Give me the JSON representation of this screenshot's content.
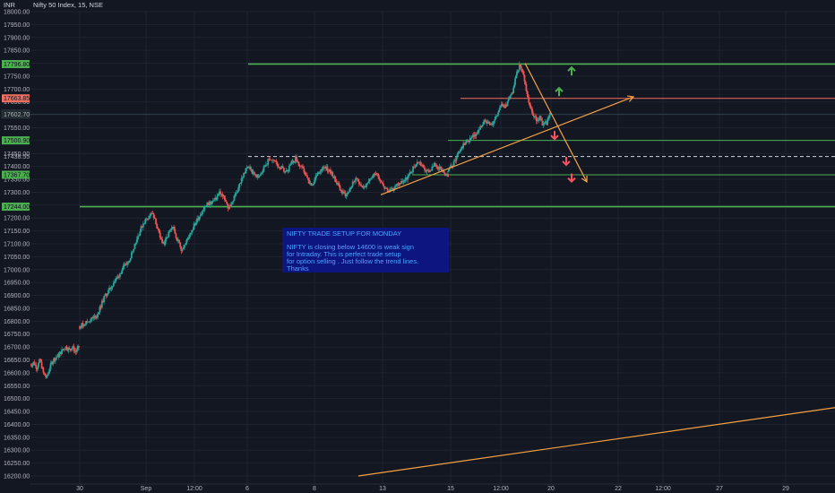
{
  "header": {
    "currency": "INR",
    "symbol_title": "Nifty 50 Index, 15, NSE"
  },
  "chart_data": {
    "type": "candlestick",
    "currency": "INR",
    "ylim": [
      16200,
      18000
    ],
    "y_ticks": [
      16200,
      16250,
      16300,
      16350,
      16400,
      16450,
      16500,
      16550,
      16600,
      16650,
      16700,
      16750,
      16800,
      16850,
      16900,
      16950,
      17000,
      17050,
      17100,
      17150,
      17200,
      17250,
      17300,
      17350,
      17400,
      17450,
      17500,
      17550,
      17600,
      17650,
      17700,
      17750,
      17800,
      17850,
      17900,
      17950,
      18000
    ],
    "y_tick_labels": [
      "16200.00",
      "16250.00",
      "16300.00",
      "16350.00",
      "16400.00",
      "16450.00",
      "16500.00",
      "16550.00",
      "16600.00",
      "16650.00",
      "16700.00",
      "16750.00",
      "16800.00",
      "16850.00",
      "16900.00",
      "16950.00",
      "17000.00",
      "17050.00",
      "17100.00",
      "17150.00",
      "17200.00",
      "17250.00",
      "17300.00",
      "17350.00",
      "17400.00",
      "17450.00",
      "17500.00",
      "17550.00",
      "17600.00",
      "17650.00",
      "17700.00",
      "17750.00",
      "17800.00",
      "17850.00",
      "17900.00",
      "17950.00",
      "18000.00"
    ],
    "x_ticks": [
      "30",
      "Sep",
      "12:00",
      "6",
      "8",
      "13",
      "15",
      "12:00",
      "20",
      "22",
      "12:00",
      "27",
      "29"
    ],
    "price_levels": [
      {
        "value": 17796.8,
        "label": "17796.80",
        "color": "#4caf50",
        "style": "solid"
      },
      {
        "value": 17663.85,
        "label": "17663.85",
        "color": "#ef6f61",
        "style": "solid"
      },
      {
        "value": 17500.9,
        "label": "17500.90",
        "color": "#4caf50",
        "style": "solid"
      },
      {
        "value": 17438.55,
        "label": "17438.55",
        "color": "#d1d4dc",
        "style": "dashed"
      },
      {
        "value": 17367.7,
        "label": "17367.70",
        "color": "#4caf50",
        "style": "solid"
      },
      {
        "value": 17244.0,
        "label": "17244.00",
        "color": "#4caf50",
        "style": "solid"
      }
    ],
    "last_price": {
      "value": 17602.7,
      "label": "17602.70"
    },
    "path_points": [
      [
        16630,
        16640,
        16620,
        16650,
        16600,
        16580,
        16620,
        16650,
        16660,
        16670,
        16690,
        16700,
        16690,
        16700,
        16680,
        16700
      ],
      [
        16780,
        16790,
        16800,
        16810,
        16820,
        16860,
        16900,
        16920,
        16950,
        16970,
        17000,
        17020,
        17050,
        17100,
        17140,
        17180,
        17200,
        17220,
        17180,
        17120,
        17100,
        17140,
        17160,
        17120,
        17080,
        17100,
        17140,
        17170,
        17200,
        17230,
        17250,
        17260,
        17270,
        17300,
        17280,
        17240,
        17260,
        17300,
        17340,
        17380,
        17400,
        17370,
        17360,
        17380,
        17410,
        17430,
        17420,
        17400,
        17390,
        17380,
        17410,
        17430,
        17400,
        17380,
        17340,
        17320,
        17370,
        17390,
        17400,
        17380,
        17360,
        17330,
        17300,
        17290,
        17320,
        17350,
        17340,
        17320,
        17330,
        17360,
        17380,
        17350,
        17320,
        17300,
        17310,
        17330,
        17340,
        17350,
        17370,
        17400,
        17420,
        17400,
        17380,
        17390,
        17410,
        17390,
        17370,
        17360
      ],
      [
        17380,
        17400,
        17420,
        17450,
        17470,
        17490,
        17500,
        17510,
        17520,
        17540,
        17560,
        17580,
        17570,
        17560,
        17590,
        17620,
        17640,
        17630,
        17660,
        17690,
        17750,
        17790,
        17770,
        17700,
        17640,
        17600,
        17580,
        17590,
        17560,
        17570,
        17600
      ]
    ],
    "trend_lines": [
      {
        "color": "#f5a142",
        "from": [
          425,
          17290
        ],
        "to": [
          707,
          17670
        ],
        "arrow": true
      },
      {
        "color": "#f5a142",
        "from": [
          586,
          17800
        ],
        "to": [
          655,
          17340
        ],
        "arrow": true
      },
      {
        "color": "#f5a142",
        "from": [
          400,
          16200
        ],
        "to": [
          932,
          16465
        ],
        "arrow": false
      }
    ],
    "arrows": [
      {
        "dir": "up",
        "color": "#4caf50",
        "x": 638,
        "y": 17770
      },
      {
        "dir": "up",
        "color": "#4caf50",
        "x": 624,
        "y": 17690
      },
      {
        "dir": "down",
        "color": "#f7525f",
        "x": 619,
        "y": 17520
      },
      {
        "dir": "down",
        "color": "#f7525f",
        "x": 632,
        "y": 17420
      },
      {
        "dir": "down",
        "color": "#f7525f",
        "x": 638,
        "y": 17355
      }
    ],
    "colors": {
      "up": "#26a69a",
      "down": "#ef5350",
      "background": "#131722",
      "grid": "#1f2330"
    }
  },
  "annotation": {
    "title": "NIFTY TRADE SETUP FOR MONDAY",
    "lines": [
      "NIFTY is closing below 14600 is weak sign",
      "for Intraday. This is perfect trade setup",
      "for option selling . Just follow the trend lines.",
      "Thanks"
    ],
    "background": "#0d1680",
    "text_color": "#4aa3ff"
  }
}
